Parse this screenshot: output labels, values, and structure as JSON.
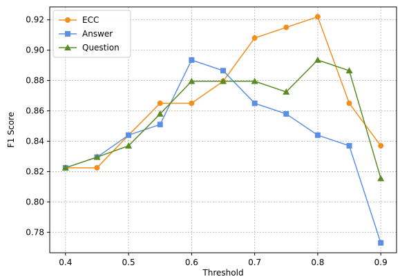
{
  "chart_data": {
    "type": "line",
    "xlabel": "Threshold",
    "ylabel": "F1 Score",
    "xlim": [
      0.375,
      0.925
    ],
    "ylim": [
      0.7665,
      0.9285
    ],
    "xticks": [
      "0.4",
      "0.5",
      "0.6",
      "0.7",
      "0.8",
      "0.9"
    ],
    "yticks": [
      "0.78",
      "0.80",
      "0.82",
      "0.84",
      "0.86",
      "0.88",
      "0.90",
      "0.92"
    ],
    "grid": true,
    "legend_position": "top-left",
    "x": [
      0.4,
      0.45,
      0.5,
      0.55,
      0.6,
      0.65,
      0.7,
      0.75,
      0.8,
      0.85,
      0.9
    ],
    "series": [
      {
        "name": "ECC",
        "color": "#f28e1c",
        "marker": "circle",
        "values": [
          0.8225,
          0.8225,
          0.844,
          0.865,
          0.865,
          0.8795,
          0.908,
          0.915,
          0.922,
          0.865,
          0.837
        ]
      },
      {
        "name": "Answer",
        "color": "#5b8fe3",
        "marker": "square",
        "values": [
          0.8225,
          0.8295,
          0.844,
          0.851,
          0.8935,
          0.8865,
          0.865,
          0.858,
          0.844,
          0.837,
          0.773
        ]
      },
      {
        "name": "Question",
        "color": "#5a8a23",
        "marker": "triangle",
        "values": [
          0.8225,
          0.8295,
          0.837,
          0.858,
          0.8795,
          0.8795,
          0.8795,
          0.8725,
          0.8935,
          0.8865,
          0.8155
        ]
      }
    ]
  }
}
